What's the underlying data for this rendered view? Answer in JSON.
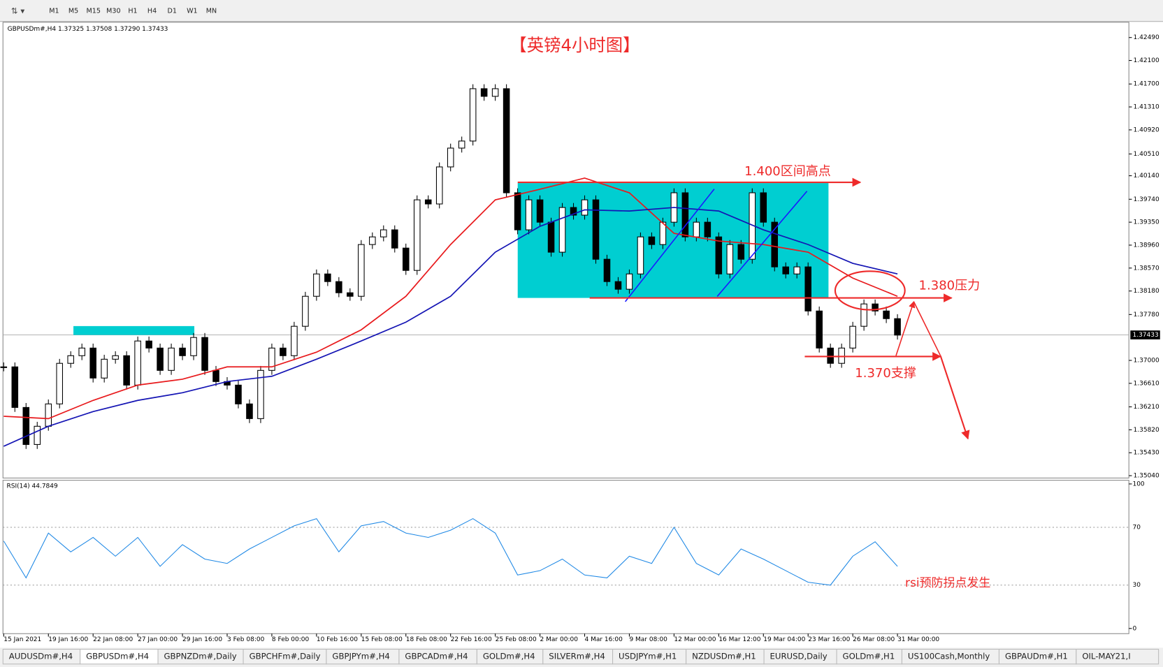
{
  "toolbar": {
    "timeframes": [
      "M1",
      "M5",
      "M15",
      "M30",
      "H1",
      "H4",
      "D1",
      "W1",
      "MN"
    ]
  },
  "chart": {
    "header": "GBPUSDm#,H4  1.37325 1.37508 1.37290 1.37433",
    "title": "【英镑4小时图】",
    "annotations": [
      "1.400区间高点",
      "1.380压力",
      "1.370支撑",
      "rsi预防拐点发生"
    ],
    "type": "candlestick",
    "ylim": [
      1.35,
      1.4275
    ],
    "yticks": [
      {
        "value": 1.4249,
        "label": "1.42490"
      },
      {
        "value": 1.421,
        "label": "1.42100"
      },
      {
        "value": 1.417,
        "label": "1.41700"
      },
      {
        "value": 1.4131,
        "label": "1.41310"
      },
      {
        "value": 1.4092,
        "label": "1.40920"
      },
      {
        "value": 1.4051,
        "label": "1.40510"
      },
      {
        "value": 1.4014,
        "label": "1.40140"
      },
      {
        "value": 1.3974,
        "label": "1.39740"
      },
      {
        "value": 1.3935,
        "label": "1.39350"
      },
      {
        "value": 1.3896,
        "label": "1.38960"
      },
      {
        "value": 1.3857,
        "label": "1.38570"
      },
      {
        "value": 1.3818,
        "label": "1.38180"
      },
      {
        "value": 1.3778,
        "label": "1.37780"
      },
      {
        "value": 1.37,
        "label": "1.37000"
      },
      {
        "value": 1.3661,
        "label": "1.36610"
      },
      {
        "value": 1.3621,
        "label": "1.36210"
      },
      {
        "value": 1.3582,
        "label": "1.35820"
      },
      {
        "value": 1.3543,
        "label": "1.35430"
      },
      {
        "value": 1.3504,
        "label": "1.35040"
      }
    ],
    "current_price": 1.37433,
    "categories": [
      "15 Jan 2021",
      "19 Jan 16:00",
      "22 Jan 08:00",
      "27 Jan 00:00",
      "29 Jan 16:00",
      "3 Feb 08:00",
      "8 Feb 00:00",
      "10 Feb 16:00",
      "15 Feb 08:00",
      "18 Feb 08:00",
      "22 Feb 16:00",
      "25 Feb 08:00",
      "2 Mar 00:00",
      "4 Mar 16:00",
      "9 Mar 08:00",
      "12 Mar 00:00",
      "16 Mar 12:00",
      "19 Mar 04:00",
      "23 Mar 16:00",
      "26 Mar 08:00",
      "31 Mar 00:00"
    ],
    "price": {
      "name": "GBPUSDm#,H4",
      "color": "#000000",
      "values": [
        1.3689,
        1.362,
        1.3557,
        1.3588,
        1.3626,
        1.3695,
        1.3708,
        1.3721,
        1.367,
        1.3702,
        1.3708,
        1.3658,
        1.3733,
        1.3721,
        1.3683,
        1.3721,
        1.3708,
        1.3739,
        1.3683,
        1.3664,
        1.3658,
        1.3626,
        1.3601,
        1.3683,
        1.3721,
        1.3708,
        1.3758,
        1.3809,
        1.3847,
        1.3834,
        1.3815,
        1.3809,
        1.3897,
        1.391,
        1.3922,
        1.3891,
        1.3853,
        1.3973,
        1.3966,
        1.4029,
        1.4061,
        1.4073,
        1.4162,
        1.4149,
        1.4162,
        1.3985,
        1.3922,
        1.3973,
        1.3935,
        1.3884,
        1.396,
        1.3947,
        1.3973,
        1.3872,
        1.3834,
        1.3821,
        1.3847,
        1.391,
        1.3897,
        1.3935,
        1.3985,
        1.391,
        1.3935,
        1.391,
        1.3847,
        1.3897,
        1.3872,
        1.3985,
        1.3935,
        1.3859,
        1.3847,
        1.3859,
        1.3784,
        1.3721,
        1.3695,
        1.3721,
        1.3758,
        1.3796,
        1.3784,
        1.3771,
        1.3743
      ]
    },
    "moving_averages": [
      {
        "color": "#e8191c",
        "values": [
          1.3605,
          1.3601,
          1.3632,
          1.3658,
          1.3668,
          1.3689,
          1.3689,
          1.3714,
          1.3752,
          1.3809,
          1.3897,
          1.3973,
          1.3991,
          1.401,
          1.3985,
          1.3916,
          1.3903,
          1.3897,
          1.3884,
          1.384,
          1.3809
        ]
      },
      {
        "color": "#1414b4",
        "values": [
          1.3554,
          1.3588,
          1.3613,
          1.3632,
          1.3645,
          1.3664,
          1.3673,
          1.3702,
          1.3733,
          1.3765,
          1.3809,
          1.3884,
          1.3928,
          1.3956,
          1.3954,
          1.396,
          1.3954,
          1.3922,
          1.3897,
          1.3865,
          1.3847
        ]
      }
    ],
    "rsi": {
      "label": "RSI(14) 44.7849",
      "type": "line",
      "color": "#1e88e5",
      "ylim": [
        0,
        100
      ],
      "yticks": [
        0,
        30,
        70,
        100
      ],
      "values": [
        60.5,
        35,
        66,
        53,
        63,
        50,
        63,
        43,
        58,
        48,
        45,
        55,
        63,
        71,
        76,
        53,
        71,
        74,
        66,
        63,
        68,
        76,
        66,
        37,
        40,
        48,
        37,
        35,
        50,
        45,
        70,
        45,
        37,
        55,
        48,
        40,
        32,
        30,
        50,
        60,
        43
      ]
    }
  },
  "tabs": [
    "AUDUSDm#,H4",
    "GBPUSDm#,H4",
    "GBPNZDm#,Daily",
    "GBPCHFm#,Daily",
    "GBPJPYm#,H4",
    "GBPCADm#,H4",
    "GOLDm#,H4",
    "SILVERm#,H4",
    "USDJPYm#,H1",
    "NZDUSDm#,H1",
    "EURUSD,Daily",
    "GOLDm#,H1",
    "US100Cash,Monthly",
    "GBPAUDm#,H1",
    "OIL-MAY21,I"
  ]
}
